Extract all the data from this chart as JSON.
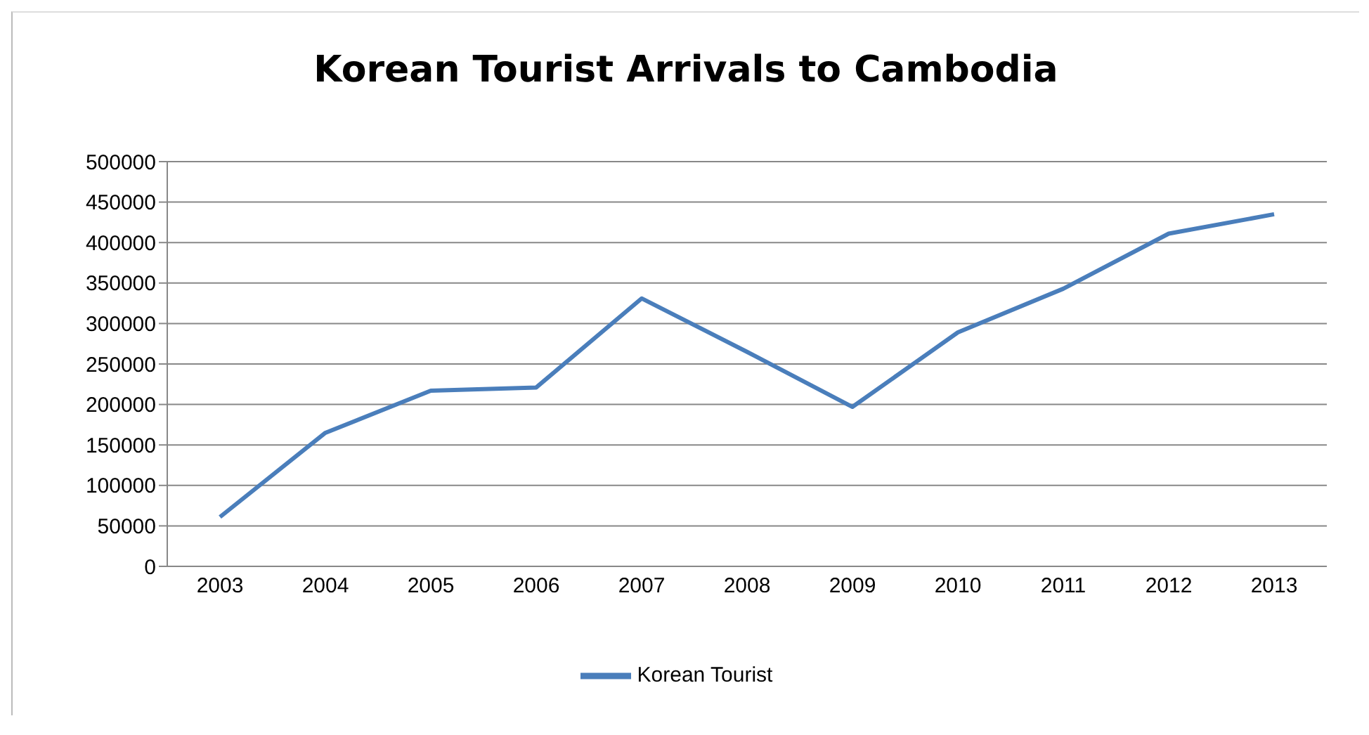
{
  "chart_data": {
    "type": "line",
    "title": "Korean Tourist Arrivals to Cambodia",
    "categories": [
      "2003",
      "2004",
      "2005",
      "2006",
      "2007",
      "2008",
      "2009",
      "2010",
      "2011",
      "2012",
      "2013"
    ],
    "series": [
      {
        "name": "Korean Tourist",
        "color": "#4a7ebb",
        "values": [
          61000,
          165000,
          217000,
          221000,
          331000,
          265000,
          197000,
          289000,
          343000,
          411000,
          435000
        ]
      }
    ],
    "ylim": [
      0,
      500000
    ],
    "yticks": [
      0,
      50000,
      100000,
      150000,
      200000,
      250000,
      300000,
      350000,
      400000,
      450000,
      500000
    ],
    "grid": "y",
    "legend": "bottom",
    "marker": "none",
    "line_style": "solid"
  }
}
